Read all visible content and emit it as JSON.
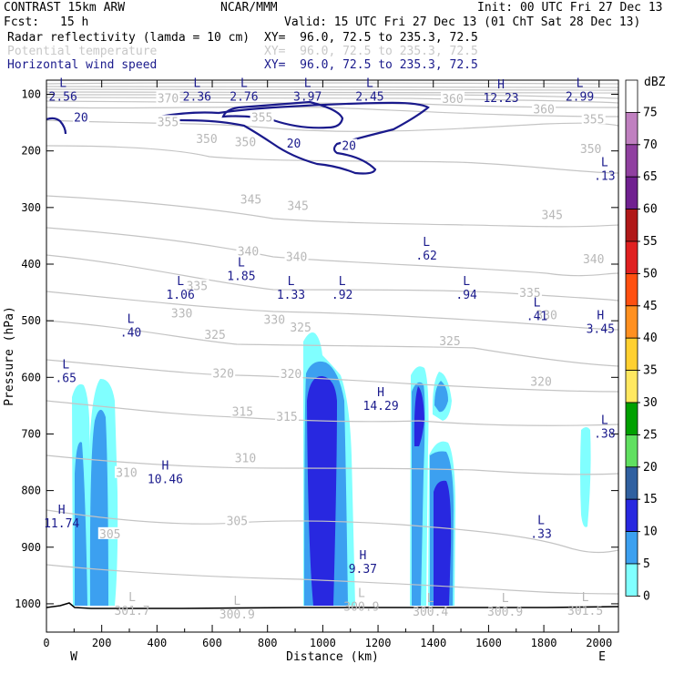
{
  "header": {
    "model": "CONTRAST 15km ARW",
    "org": "NCAR/MMM",
    "init": "Init: 00 UTC Fri 27 Dec 13",
    "fcst_label": "Fcst:",
    "fcst_value": "15 h",
    "valid": "Valid: 15 UTC Fri 27 Dec 13 (01 ChT Sat 28 Dec 13)",
    "fields": [
      {
        "name": "Radar reflectivity (lamda = 10 cm)",
        "xy": "XY=  96.0, 72.5 to 235.3, 72.5",
        "color": "#000000"
      },
      {
        "name": "Potential temperature",
        "xy": "XY=  96.0, 72.5 to 235.3, 72.5",
        "color": "#c8c8c8"
      },
      {
        "name": "Horizontal wind speed",
        "xy": "XY=  96.0, 72.5 to 235.3, 72.5",
        "color": "#1a1a8c"
      }
    ]
  },
  "chart_data": {
    "type": "cross-section contour",
    "xlabel": "Distance (km)",
    "ylabel": "Pressure (hPa)",
    "xlim": [
      0,
      2070
    ],
    "ylim": [
      1050,
      75
    ],
    "x_ticks": [
      "0",
      "200",
      "400",
      "600",
      "800",
      "1000",
      "1200",
      "1400",
      "1600",
      "1800",
      "2000"
    ],
    "y_ticks": [
      "100",
      "200",
      "300",
      "400",
      "500",
      "600",
      "700",
      "800",
      "900",
      "1000"
    ],
    "x_end_labels": {
      "left": "W",
      "right": "E"
    },
    "colorbar": {
      "unit": "dBZ",
      "labels": [
        "75",
        "70",
        "65",
        "60",
        "55",
        "50",
        "45",
        "40",
        "35",
        "30",
        "25",
        "20",
        "15",
        "10",
        "5",
        "0"
      ],
      "colors": [
        "#ffffff",
        "#c080c0",
        "#9040a0",
        "#702090",
        "#b01818",
        "#e02020",
        "#ff5010",
        "#ff9020",
        "#ffd030",
        "#ffe860",
        "#00a000",
        "#60e060",
        "#3060a0",
        "#2828e0",
        "#3ca0f0",
        "#80ffff"
      ]
    },
    "theta_labels": [
      {
        "v": "370",
        "x": 440,
        "p": 106
      },
      {
        "v": "360",
        "x": 1470,
        "p": 107
      },
      {
        "v": "360",
        "x": 1800,
        "p": 126
      },
      {
        "v": "355",
        "x": 440,
        "p": 148
      },
      {
        "v": "355",
        "x": 780,
        "p": 140
      },
      {
        "v": "355",
        "x": 1980,
        "p": 143
      },
      {
        "v": "350",
        "x": 580,
        "p": 178
      },
      {
        "v": "350",
        "x": 720,
        "p": 184
      },
      {
        "v": "350",
        "x": 1970,
        "p": 196
      },
      {
        "v": "345",
        "x": 740,
        "p": 285
      },
      {
        "v": "345",
        "x": 910,
        "p": 296
      },
      {
        "v": "345",
        "x": 1830,
        "p": 312
      },
      {
        "v": "340",
        "x": 730,
        "p": 377
      },
      {
        "v": "340",
        "x": 905,
        "p": 386
      },
      {
        "v": "340",
        "x": 1980,
        "p": 390
      },
      {
        "v": "335",
        "x": 545,
        "p": 438
      },
      {
        "v": "335",
        "x": 1750,
        "p": 450
      },
      {
        "v": "330",
        "x": 490,
        "p": 486
      },
      {
        "v": "330",
        "x": 825,
        "p": 497
      },
      {
        "v": "330",
        "x": 1810,
        "p": 489
      },
      {
        "v": "325",
        "x": 610,
        "p": 524
      },
      {
        "v": "325",
        "x": 920,
        "p": 511
      },
      {
        "v": "325",
        "x": 1460,
        "p": 535
      },
      {
        "v": "320",
        "x": 640,
        "p": 592
      },
      {
        "v": "320",
        "x": 885,
        "p": 593
      },
      {
        "v": "320",
        "x": 1790,
        "p": 607
      },
      {
        "v": "315",
        "x": 710,
        "p": 660
      },
      {
        "v": "315",
        "x": 870,
        "p": 669
      },
      {
        "v": "310",
        "x": 290,
        "p": 768
      },
      {
        "v": "310",
        "x": 720,
        "p": 742
      },
      {
        "v": "305",
        "x": 230,
        "p": 876
      },
      {
        "v": "305",
        "x": 690,
        "p": 853
      }
    ],
    "surface_theta_labels": [
      {
        "v": "301.7",
        "x": 310,
        "p": 1008
      },
      {
        "v": "300.9",
        "x": 690,
        "p": 1015
      },
      {
        "v": "300.9",
        "x": 1140,
        "p": 1001
      },
      {
        "v": "300.4",
        "x": 1390,
        "p": 1010
      },
      {
        "v": "300.9",
        "x": 1660,
        "p": 1010
      },
      {
        "v": "301.5",
        "x": 1950,
        "p": 1008
      }
    ],
    "wind_contour_labels": [
      {
        "v": "20",
        "x": 125,
        "p": 140
      },
      {
        "v": "20",
        "x": 895,
        "p": 186
      },
      {
        "v": "20",
        "x": 1095,
        "p": 190
      }
    ],
    "extrema": [
      {
        "type": "L",
        "value": "2.56",
        "x": 60,
        "p": 100
      },
      {
        "type": "L",
        "value": "2.36",
        "x": 545,
        "p": 100
      },
      {
        "type": "L",
        "value": "2.76",
        "x": 715,
        "p": 100
      },
      {
        "type": "L",
        "value": "3.97",
        "x": 945,
        "p": 100
      },
      {
        "type": "L",
        "value": "2.45",
        "x": 1170,
        "p": 100
      },
      {
        "type": "H",
        "value": "12.23",
        "x": 1645,
        "p": 102
      },
      {
        "type": "L",
        "value": "2.99",
        "x": 1930,
        "p": 100
      },
      {
        "type": "L",
        "value": ".13",
        "x": 2020,
        "p": 240
      },
      {
        "type": "L",
        "value": ".62",
        "x": 1375,
        "p": 381
      },
      {
        "type": "L",
        "value": "1.85",
        "x": 705,
        "p": 417
      },
      {
        "type": "L",
        "value": "1.06",
        "x": 485,
        "p": 450
      },
      {
        "type": "L",
        "value": "1.33",
        "x": 885,
        "p": 450
      },
      {
        "type": "L",
        "value": ".92",
        "x": 1070,
        "p": 450
      },
      {
        "type": "L",
        "value": ".94",
        "x": 1520,
        "p": 450
      },
      {
        "type": "L",
        "value": ".41",
        "x": 1775,
        "p": 488
      },
      {
        "type": "H",
        "value": "3.45",
        "x": 2005,
        "p": 510
      },
      {
        "type": "L",
        "value": ".40",
        "x": 305,
        "p": 517
      },
      {
        "type": "L",
        "value": ".65",
        "x": 70,
        "p": 597
      },
      {
        "type": "H",
        "value": "14.29",
        "x": 1210,
        "p": 646
      },
      {
        "type": "L",
        "value": ".38",
        "x": 2020,
        "p": 695
      },
      {
        "type": "H",
        "value": "10.46",
        "x": 430,
        "p": 776
      },
      {
        "type": "H",
        "value": "11.74",
        "x": 55,
        "p": 854
      },
      {
        "type": "L",
        "value": ".33",
        "x": 1790,
        "p": 872
      },
      {
        "type": "H",
        "value": "9.37",
        "x": 1145,
        "p": 934
      }
    ]
  }
}
